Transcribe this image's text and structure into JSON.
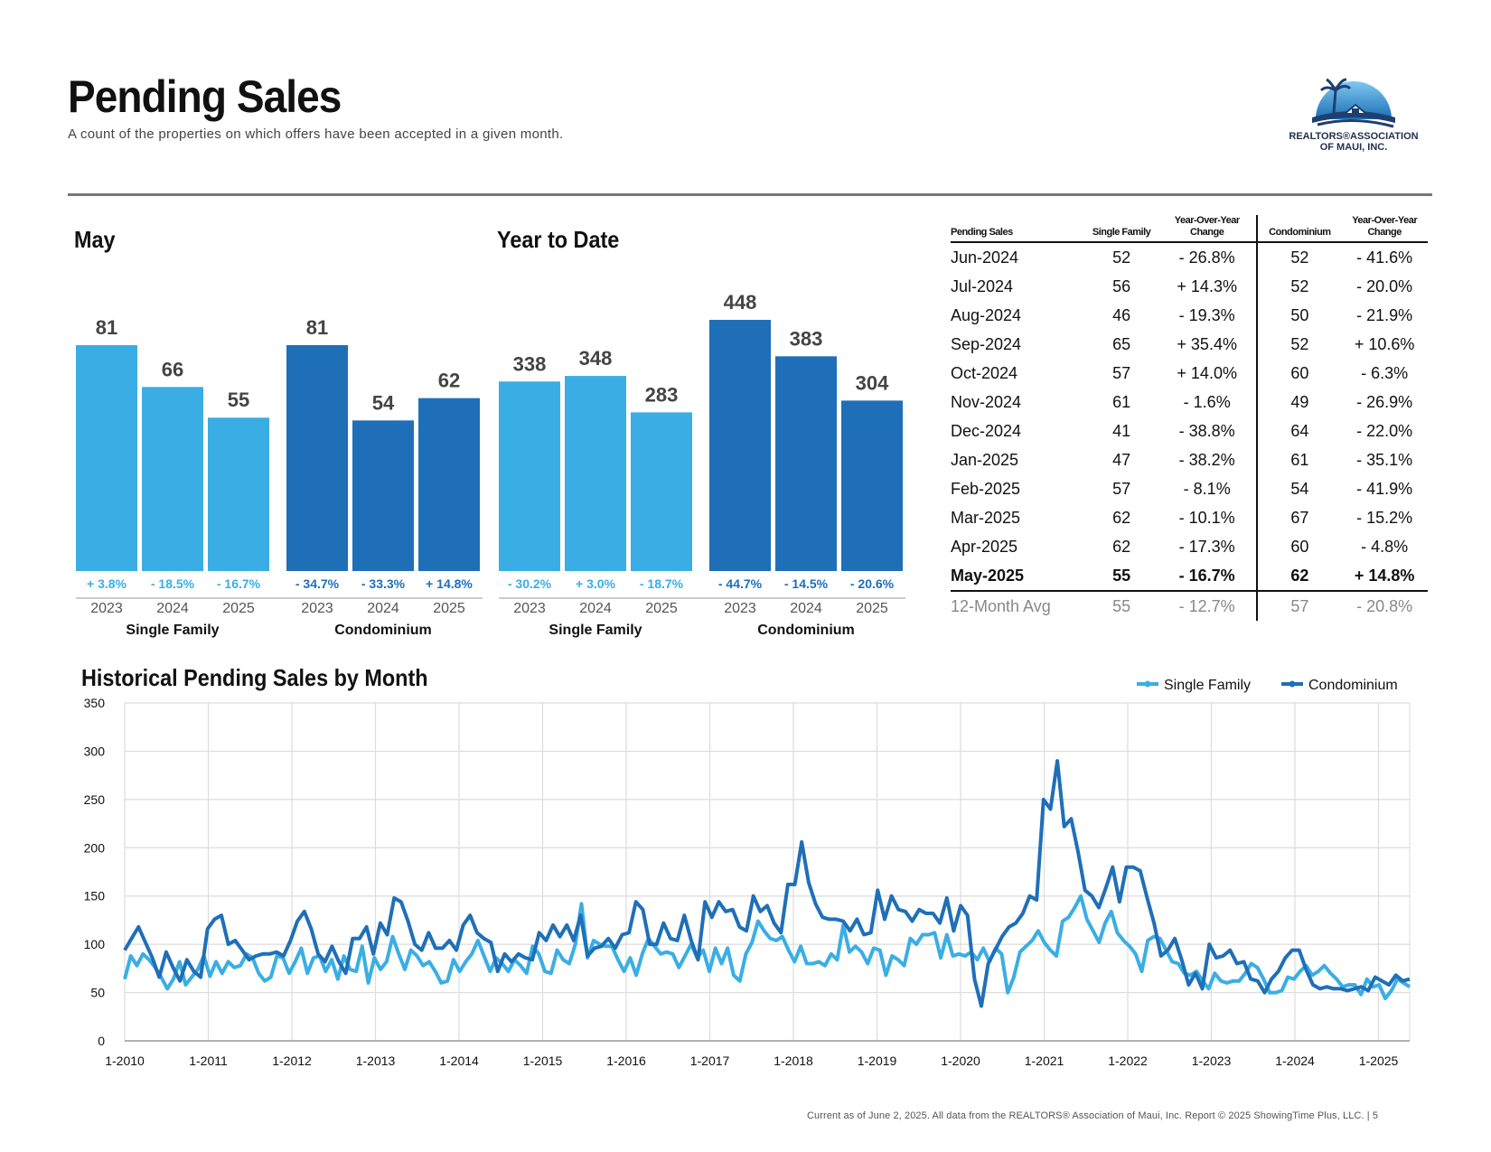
{
  "header": {
    "title": "Pending Sales",
    "subtitle": "A count of the properties on which offers have been accepted in a given month."
  },
  "logo": {
    "line1": "REALTORS®ASSOCIATION",
    "line2": "OF MAUI, INC.",
    "icon": "palm-house-logo-icon"
  },
  "colors": {
    "single_family": "#3AAEE4",
    "condominium": "#1F6FB8",
    "text_gray": "#888888"
  },
  "sections": {
    "month_title": "May",
    "ytd_title": "Year to Date",
    "hist_title": "Historical Pending Sales by Month"
  },
  "chart_data": [
    {
      "type": "bar",
      "title": "May",
      "categories": [
        "2023",
        "2024",
        "2025"
      ],
      "series": [
        {
          "name": "Single Family",
          "values": [
            81,
            66,
            55
          ],
          "changes": [
            "+ 3.8%",
            "- 18.5%",
            "- 16.7%"
          ]
        },
        {
          "name": "Condominium",
          "values": [
            81,
            54,
            62
          ],
          "changes": [
            "- 34.7%",
            "- 33.3%",
            "+ 14.8%"
          ]
        }
      ]
    },
    {
      "type": "bar",
      "title": "Year to Date",
      "categories": [
        "2023",
        "2024",
        "2025"
      ],
      "series": [
        {
          "name": "Single Family",
          "values": [
            338,
            348,
            283
          ],
          "changes": [
            "- 30.2%",
            "+ 3.0%",
            "- 18.7%"
          ]
        },
        {
          "name": "Condominium",
          "values": [
            448,
            383,
            304
          ],
          "changes": [
            "- 44.7%",
            "- 14.5%",
            "- 20.6%"
          ]
        }
      ]
    },
    {
      "type": "line",
      "title": "Historical Pending Sales by Month",
      "ylim": [
        0,
        350
      ],
      "yticks": [
        0,
        50,
        100,
        150,
        200,
        250,
        300,
        350
      ],
      "x_start": "1-2010",
      "xticks": [
        "1-2010",
        "1-2011",
        "1-2012",
        "1-2013",
        "1-2014",
        "1-2015",
        "1-2016",
        "1-2017",
        "1-2018",
        "1-2019",
        "1-2020",
        "1-2021",
        "1-2022",
        "1-2023",
        "1-2024",
        "1-2025"
      ],
      "legend": "top-right",
      "grid": true,
      "series": [
        {
          "name": "Single Family",
          "values": [
            64,
            88,
            78,
            90,
            84,
            76,
            66,
            54,
            64,
            82,
            58,
            66,
            74,
            88,
            67,
            82,
            70,
            82,
            76,
            78,
            90,
            86,
            70,
            62,
            66,
            88,
            86,
            70,
            82,
            96,
            70,
            86,
            88,
            72,
            84,
            64,
            88,
            74,
            72,
            98,
            60,
            86,
            74,
            82,
            108,
            90,
            74,
            94,
            88,
            78,
            82,
            72,
            60,
            62,
            84,
            72,
            82,
            90,
            104,
            88,
            72,
            86,
            80,
            72,
            84,
            78,
            70,
            98,
            90,
            72,
            70,
            94,
            84,
            80,
            100,
            142,
            86,
            104,
            100,
            98,
            98,
            84,
            72,
            86,
            68,
            90,
            106,
            98,
            90,
            92,
            90,
            76,
            88,
            100,
            86,
            94,
            72,
            96,
            80,
            96,
            68,
            62,
            90,
            102,
            124,
            114,
            106,
            104,
            108,
            94,
            82,
            98,
            80,
            80,
            82,
            78,
            90,
            84,
            120,
            92,
            98,
            92,
            80,
            96,
            94,
            68,
            88,
            84,
            78,
            106,
            100,
            110,
            110,
            112,
            86,
            110,
            88,
            90,
            88,
            92,
            84,
            96,
            82,
            96,
            90,
            50,
            66,
            92,
            98,
            104,
            114,
            102,
            94,
            88,
            124,
            128,
            138,
            150,
            126,
            114,
            102,
            122,
            134,
            112,
            104,
            98,
            90,
            72,
            104,
            108,
            106,
            94,
            82,
            80,
            70,
            68,
            72,
            62,
            54,
            70,
            62,
            60,
            62,
            62,
            70,
            80,
            76,
            64,
            50,
            50,
            52,
            66,
            64,
            72,
            78,
            68,
            72,
            78,
            70,
            64,
            56,
            58,
            58,
            48,
            64,
            56,
            58,
            44,
            52,
            64,
            60,
            56
          ],
          "names": [
            "2023",
            "2024",
            "2025"
          ]
        },
        {
          "name": "Condominium",
          "values": [
            94,
            106,
            118,
            102,
            86,
            66,
            92,
            76,
            62,
            84,
            72,
            66,
            116,
            126,
            130,
            100,
            104,
            94,
            84,
            88,
            90,
            90,
            92,
            88,
            104,
            124,
            134,
            116,
            90,
            82,
            98,
            82,
            70,
            106,
            106,
            118,
            90,
            122,
            110,
            148,
            144,
            124,
            100,
            94,
            112,
            96,
            96,
            104,
            94,
            120,
            130,
            112,
            106,
            102,
            72,
            90,
            82,
            90,
            86,
            84,
            112,
            104,
            120,
            108,
            120,
            104,
            130,
            88,
            96,
            98,
            106,
            96,
            110,
            112,
            144,
            136,
            100,
            100,
            122,
            106,
            104,
            130,
            104,
            84,
            144,
            128,
            144,
            134,
            136,
            118,
            114,
            150,
            134,
            140,
            122,
            112,
            162,
            162,
            206,
            164,
            142,
            128,
            126,
            126,
            124,
            114,
            126,
            110,
            112,
            156,
            126,
            150,
            136,
            134,
            124,
            136,
            132,
            132,
            122,
            148,
            114,
            140,
            130,
            64,
            36,
            80,
            94,
            108,
            118,
            122,
            132,
            150,
            146,
            250,
            240,
            290,
            222,
            230,
            196,
            156,
            150,
            138,
            158,
            180,
            144,
            180,
            180,
            176,
            148,
            122,
            88,
            94,
            106,
            84,
            58,
            70,
            54,
            100,
            86,
            88,
            94,
            80,
            82,
            64,
            62,
            50,
            64,
            72,
            86,
            94,
            94,
            74,
            58,
            54,
            56,
            54,
            54,
            52,
            54,
            56,
            52,
            66,
            62,
            58,
            68,
            62,
            64
          ]
        }
      ]
    }
  ],
  "table": {
    "headers": [
      "Pending Sales",
      "Single Family",
      "Year-Over-Year Change",
      "Condominium",
      "Year-Over-Year Change"
    ],
    "rows": [
      [
        "Jun-2024",
        "52",
        "- 26.8%",
        "52",
        "- 41.6%"
      ],
      [
        "Jul-2024",
        "56",
        "+ 14.3%",
        "52",
        "- 20.0%"
      ],
      [
        "Aug-2024",
        "46",
        "- 19.3%",
        "50",
        "- 21.9%"
      ],
      [
        "Sep-2024",
        "65",
        "+ 35.4%",
        "52",
        "+ 10.6%"
      ],
      [
        "Oct-2024",
        "57",
        "+ 14.0%",
        "60",
        "- 6.3%"
      ],
      [
        "Nov-2024",
        "61",
        "- 1.6%",
        "49",
        "- 26.9%"
      ],
      [
        "Dec-2024",
        "41",
        "- 38.8%",
        "64",
        "- 22.0%"
      ],
      [
        "Jan-2025",
        "47",
        "- 38.2%",
        "61",
        "- 35.1%"
      ],
      [
        "Feb-2025",
        "57",
        "- 8.1%",
        "54",
        "- 41.9%"
      ],
      [
        "Mar-2025",
        "62",
        "- 10.1%",
        "67",
        "- 15.2%"
      ],
      [
        "Apr-2025",
        "62",
        "- 17.3%",
        "60",
        "- 4.8%"
      ],
      [
        "May-2025",
        "55",
        "- 16.7%",
        "62",
        "+ 14.8%"
      ]
    ],
    "avg_row": [
      "12-Month Avg",
      "55",
      "- 12.7%",
      "57",
      "- 20.8%"
    ]
  },
  "footer": {
    "text": "Current as of June 2, 2025. All data from the REALTORS® Association of Maui, Inc. Report © 2025 ShowingTime Plus, LLC.  |  5"
  }
}
